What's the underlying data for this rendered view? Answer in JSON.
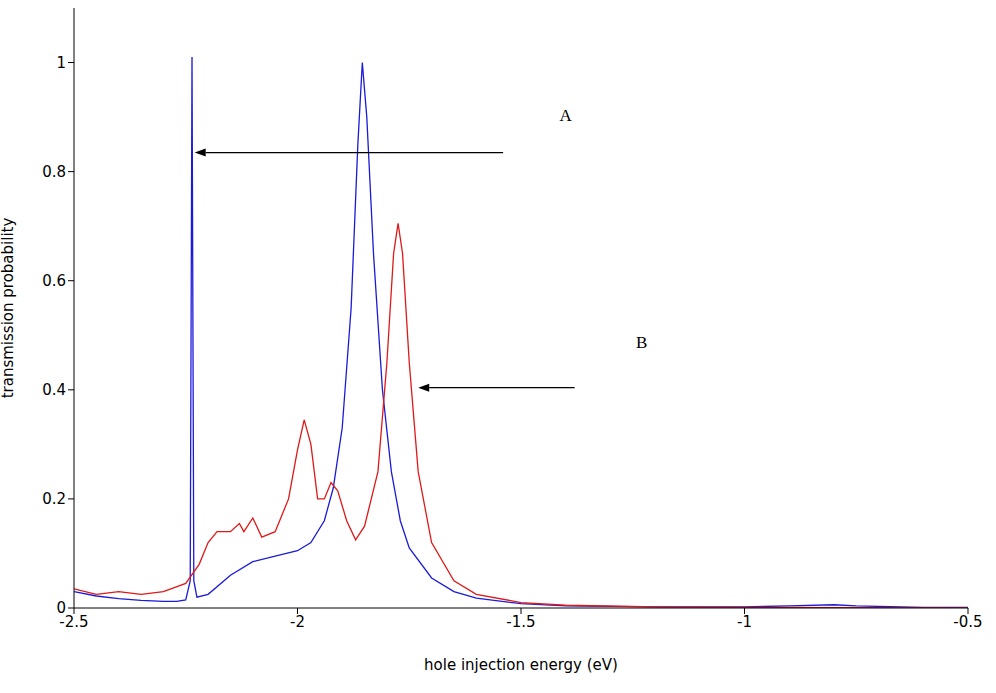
{
  "chart_data": {
    "type": "line",
    "x_label": "hole injection energy (eV)",
    "y_label": "transmission probability",
    "xlim": [
      -2.5,
      -0.5
    ],
    "xticks": [
      -2.5,
      -2,
      -1.5,
      -1,
      -0.5
    ],
    "ylim": [
      0,
      1.1
    ],
    "yticks": [
      0,
      0.2,
      0.4,
      0.6,
      0.8,
      1
    ],
    "series": [
      {
        "color": "#1a1ad8",
        "x": [
          -2.5,
          -2.45,
          -2.4,
          -2.35,
          -2.3,
          -2.27,
          -2.25,
          -2.24,
          -2.236,
          -2.232,
          -2.225,
          -2.2,
          -2.15,
          -2.1,
          -2.05,
          -2.0,
          -1.97,
          -1.94,
          -1.92,
          -1.9,
          -1.88,
          -1.865,
          -1.855,
          -1.845,
          -1.83,
          -1.81,
          -1.79,
          -1.77,
          -1.75,
          -1.7,
          -1.65,
          -1.6,
          -1.5,
          -1.4,
          -1.2,
          -1.0,
          -0.9,
          -0.8,
          -0.75,
          -0.6,
          -0.5
        ],
        "values": [
          0.03,
          0.022,
          0.017,
          0.014,
          0.012,
          0.012,
          0.015,
          0.05,
          1.01,
          0.05,
          0.02,
          0.025,
          0.06,
          0.085,
          0.095,
          0.105,
          0.12,
          0.16,
          0.22,
          0.33,
          0.55,
          0.85,
          1.0,
          0.9,
          0.65,
          0.4,
          0.25,
          0.16,
          0.11,
          0.055,
          0.03,
          0.018,
          0.008,
          0.004,
          0.002,
          0.002,
          0.004,
          0.006,
          0.004,
          0.001,
          0.001
        ]
      },
      {
        "color": "#e01818",
        "x": [
          -2.5,
          -2.45,
          -2.4,
          -2.35,
          -2.3,
          -2.25,
          -2.22,
          -2.2,
          -2.18,
          -2.15,
          -2.13,
          -2.12,
          -2.1,
          -2.08,
          -2.05,
          -2.02,
          -2.0,
          -1.985,
          -1.97,
          -1.955,
          -1.94,
          -1.925,
          -1.91,
          -1.89,
          -1.87,
          -1.85,
          -1.82,
          -1.8,
          -1.785,
          -1.775,
          -1.765,
          -1.75,
          -1.73,
          -1.7,
          -1.65,
          -1.6,
          -1.5,
          -1.4,
          -1.2,
          -1.0,
          -0.5
        ],
        "values": [
          0.035,
          0.025,
          0.03,
          0.025,
          0.03,
          0.045,
          0.08,
          0.12,
          0.14,
          0.14,
          0.155,
          0.14,
          0.165,
          0.13,
          0.14,
          0.2,
          0.29,
          0.345,
          0.3,
          0.2,
          0.2,
          0.23,
          0.215,
          0.16,
          0.125,
          0.15,
          0.25,
          0.45,
          0.65,
          0.705,
          0.65,
          0.45,
          0.25,
          0.12,
          0.05,
          0.025,
          0.01,
          0.005,
          0.002,
          0.001,
          0.0
        ]
      }
    ],
    "annotations": [
      {
        "text": "A",
        "x": -1.4,
        "y": 0.9,
        "arrow": {
          "from": [
            -1.54,
            0.835
          ],
          "to": [
            -2.23,
            0.835
          ]
        }
      },
      {
        "text": "B",
        "x": -1.23,
        "y": 0.483,
        "arrow": {
          "from": [
            -1.38,
            0.404
          ],
          "to": [
            -1.73,
            0.404
          ]
        }
      }
    ]
  }
}
